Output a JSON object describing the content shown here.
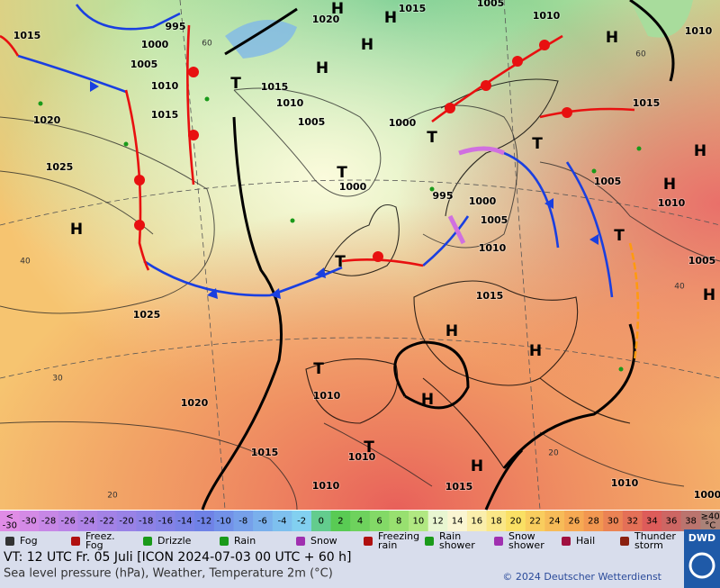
{
  "map": {
    "pressure_labels": [
      "1015",
      "995",
      "1000",
      "1020",
      "1015",
      "1005",
      "1010",
      "1010",
      "1005",
      "1010",
      "1015",
      "1015",
      "1010",
      "1005",
      "1000",
      "1020",
      "1025",
      "1000",
      "995",
      "1000",
      "1005",
      "1010",
      "1005",
      "1010",
      "1005",
      "1015",
      "1015",
      "1025",
      "1010",
      "1020",
      "1015",
      "1010",
      "1015",
      "1010",
      "1010",
      "1000"
    ],
    "pressure_centers": [
      "H",
      "H",
      "H",
      "H",
      "H",
      "T",
      "T",
      "T",
      "H",
      "T",
      "H",
      "H",
      "T",
      "H",
      "T",
      "H",
      "H",
      "T",
      "H",
      "T",
      "H"
    ],
    "temperature_labels": [
      "60",
      "60",
      "40",
      "40",
      "30",
      "20",
      "20"
    ]
  },
  "colorbar": {
    "labels": [
      "<\n-30",
      "-30",
      "-28",
      "-26",
      "-24",
      "-22",
      "-20",
      "-18",
      "-16",
      "-14",
      "-12",
      "-10",
      "-8",
      "-6",
      "-4",
      "-2",
      "0",
      "2",
      "4",
      "6",
      "8",
      "10",
      "12",
      "14",
      "16",
      "18",
      "20",
      "22",
      "24",
      "26",
      "28",
      "30",
      "32",
      "34",
      "36",
      "38",
      "≥40\n°C"
    ]
  },
  "legend": {
    "items": [
      "Fog",
      "Freez.\nFog",
      "Drizzle",
      "Rain",
      "Snow",
      "Freezing\nrain",
      "Rain\nshower",
      "Snow\nshower",
      "Hail",
      "Thunder\nstorm"
    ]
  },
  "footer": {
    "valid_time": "VT: 12 UTC Fr.  05 Juli [ICON 2024-07-03  00 UTC + 60 h]",
    "description": "Sea level pressure (hPa), Weather, Temperature 2m (°C)",
    "copyright": "© 2024 Deutscher Wetterdienst",
    "logo": "DWD"
  }
}
